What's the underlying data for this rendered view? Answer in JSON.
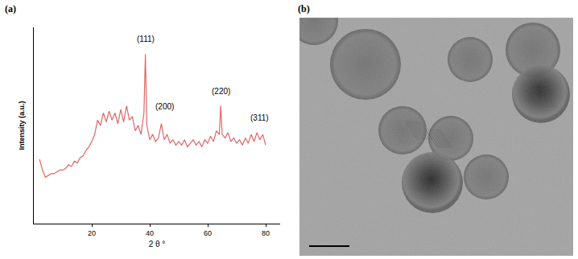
{
  "chart_data": {
    "type": "line",
    "panel_label": "(a)",
    "x_label": "2 θ °",
    "y_label": "Intensity (a.u.)",
    "color": "#e06666",
    "x": [
      2,
      3,
      4,
      5,
      6,
      7,
      8,
      9,
      10,
      11,
      12,
      13,
      14,
      15,
      16,
      17,
      18,
      19,
      20,
      21,
      22,
      23,
      24,
      25,
      26,
      27,
      28,
      29,
      30,
      31,
      32,
      33,
      34,
      35,
      36,
      37,
      38,
      38.5,
      39,
      40,
      41,
      42,
      43,
      44,
      45,
      46,
      47,
      48,
      49,
      50,
      51,
      52,
      53,
      54,
      55,
      56,
      57,
      58,
      59,
      60,
      61,
      62,
      63,
      64,
      64.5,
      65,
      66,
      67,
      68,
      69,
      70,
      71,
      72,
      73,
      74,
      75,
      76,
      77,
      78,
      79,
      80
    ],
    "values": [
      0.36,
      0.3,
      0.26,
      0.27,
      0.28,
      0.28,
      0.29,
      0.3,
      0.3,
      0.31,
      0.33,
      0.32,
      0.35,
      0.34,
      0.37,
      0.38,
      0.41,
      0.43,
      0.46,
      0.5,
      0.58,
      0.55,
      0.62,
      0.57,
      0.63,
      0.58,
      0.62,
      0.56,
      0.64,
      0.57,
      0.66,
      0.58,
      0.6,
      0.52,
      0.55,
      0.5,
      0.62,
      0.95,
      0.55,
      0.47,
      0.5,
      0.46,
      0.48,
      0.56,
      0.47,
      0.5,
      0.45,
      0.47,
      0.44,
      0.46,
      0.44,
      0.47,
      0.43,
      0.45,
      0.47,
      0.44,
      0.46,
      0.43,
      0.47,
      0.45,
      0.49,
      0.46,
      0.52,
      0.5,
      0.66,
      0.5,
      0.48,
      0.51,
      0.46,
      0.48,
      0.45,
      0.47,
      0.44,
      0.48,
      0.45,
      0.5,
      0.46,
      0.51,
      0.47,
      0.5,
      0.44
    ],
    "xlim": [
      0,
      85
    ],
    "xticks": [
      20,
      40,
      60,
      80
    ],
    "ylim": [
      0,
      1.1
    ],
    "tick_labels": "x",
    "grid": false,
    "annotations": [
      {
        "text": "(111)",
        "x": 38.5,
        "y": 1.0
      },
      {
        "text": "(200)",
        "x": 45,
        "y": 0.62
      },
      {
        "text": "(220)",
        "x": 64.5,
        "y": 0.71
      },
      {
        "text": "(311)",
        "x": 78,
        "y": 0.56
      }
    ]
  },
  "image": {
    "panel_label": "(b)"
  }
}
